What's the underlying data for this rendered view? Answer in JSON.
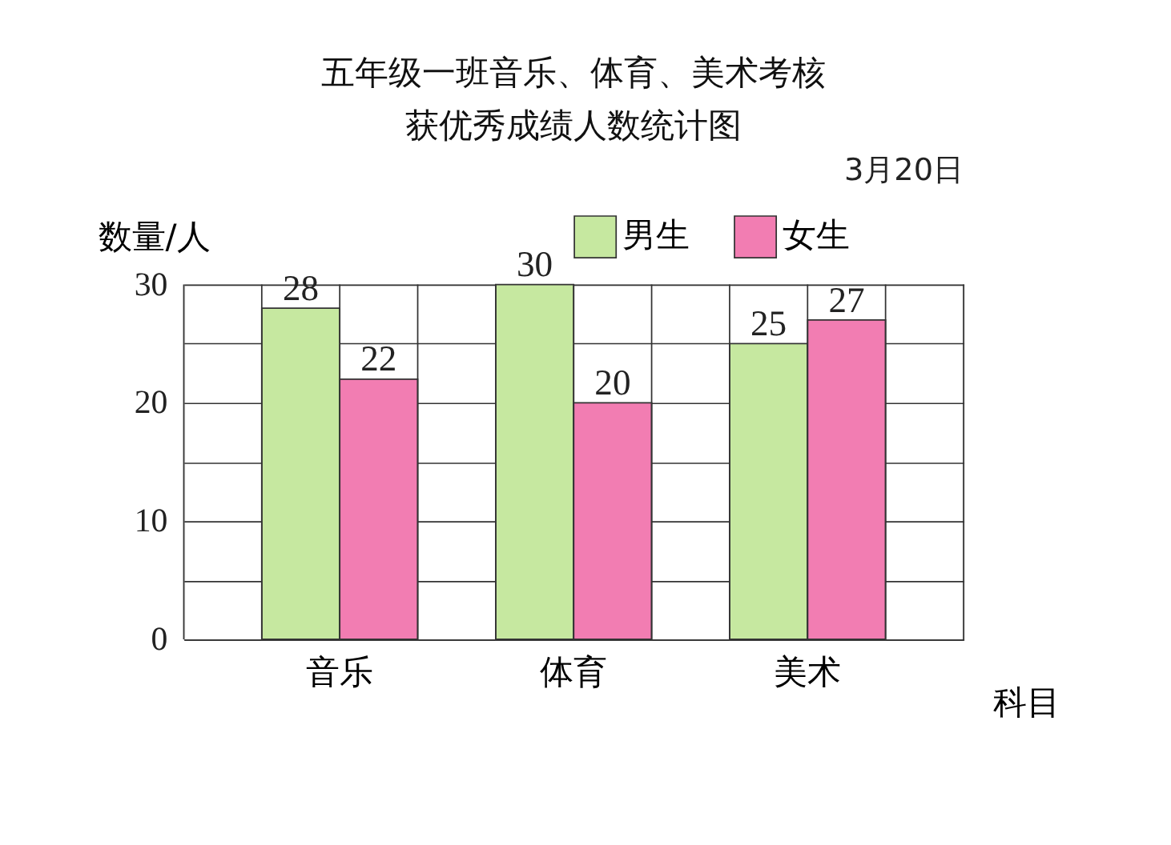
{
  "chart_data": {
    "type": "bar",
    "title": "五年级一班音乐、体育、美术考核",
    "subtitle": "获优秀成绩人数统计图",
    "annotations": [
      "3月20日"
    ],
    "xlabel": "科目",
    "ylabel": "数量/人",
    "categories": [
      "音乐",
      "体育",
      "美术"
    ],
    "series": [
      {
        "name": "男生",
        "color": "#c6e8a0",
        "values": [
          28,
          30,
          25
        ]
      },
      {
        "name": "女生",
        "color": "#f27db2",
        "values": [
          22,
          20,
          27
        ]
      }
    ],
    "ylim": [
      0,
      30
    ],
    "yticks": [
      0,
      {
        "value": 5,
        "label": null
      },
      10,
      {
        "value": 15,
        "label": null
      },
      20,
      {
        "value": 25,
        "label": null
      },
      30
    ],
    "grid": true,
    "legend": "top right",
    "data_labels": true
  }
}
